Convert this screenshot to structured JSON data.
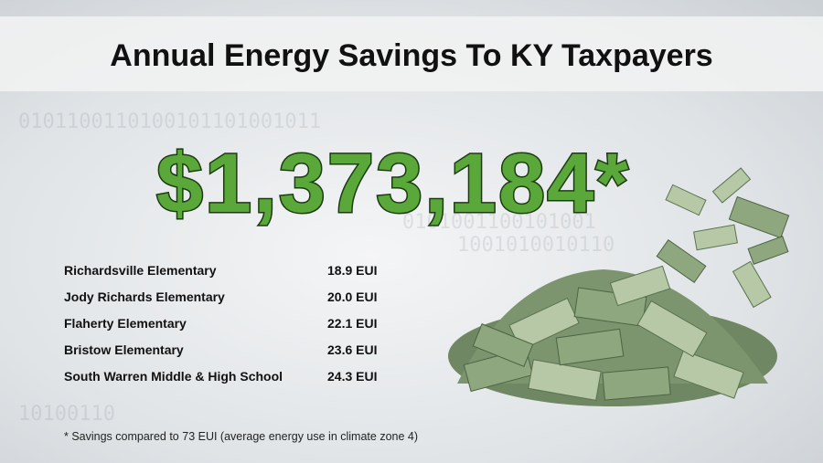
{
  "header": {
    "title": "Annual Energy Savings To KY  Taxpayers"
  },
  "amount": "$1,373,184*",
  "schools": [
    {
      "name": "Richardsville Elementary",
      "eui": "18.9 EUI"
    },
    {
      "name": "Jody Richards Elementary",
      "eui": "20.0 EUI"
    },
    {
      "name": "Flaherty Elementary",
      "eui": "22.1 EUI"
    },
    {
      "name": "Bristow Elementary",
      "eui": "23.6 EUI"
    },
    {
      "name": "South Warren Middle & High School",
      "eui": "24.3 EUI"
    }
  ],
  "footnote": "* Savings compared to 73 EUI (average energy use in climate zone 4)"
}
